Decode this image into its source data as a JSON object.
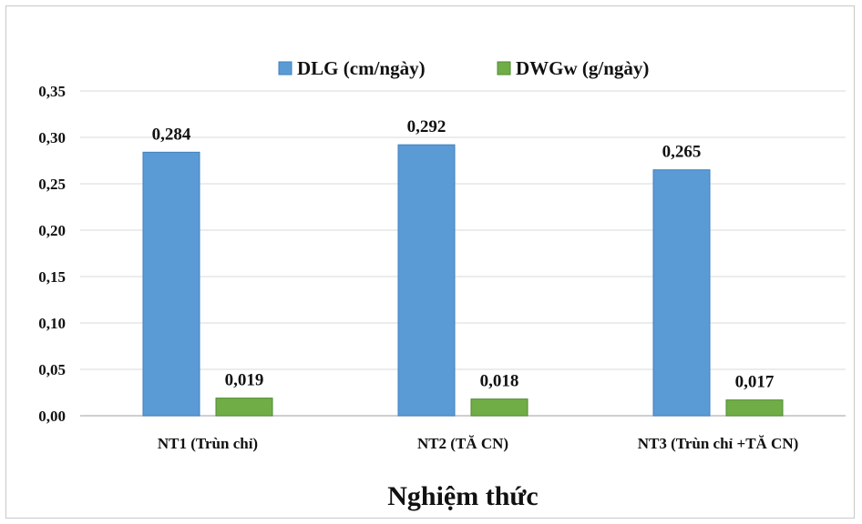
{
  "chart_data": {
    "type": "bar",
    "categories": [
      "NT1 (Trùn chỉ)",
      "NT2 (TĂ CN)",
      "NT3 (Trùn chỉ +TĂ CN)"
    ],
    "series": [
      {
        "name": "DLG (cm/ngày)",
        "values": [
          0.284,
          0.292,
          0.265
        ],
        "labels": [
          "0,284",
          "0,292",
          "0,265"
        ],
        "color": "#5b9bd5"
      },
      {
        "name": "DWGw (g/ngày)",
        "values": [
          0.019,
          0.018,
          0.017
        ],
        "labels": [
          "0,019",
          "0,018",
          "0,017"
        ],
        "color": "#70ad47"
      }
    ],
    "title": "",
    "xlabel": "Nghiệm thức",
    "ylabel": "",
    "ylim": [
      0,
      0.35
    ],
    "yticks": [
      "0,00",
      "0,05",
      "0,10",
      "0,15",
      "0,20",
      "0,25",
      "0,30",
      "0,35"
    ],
    "grid": true,
    "legend_position": "top"
  }
}
